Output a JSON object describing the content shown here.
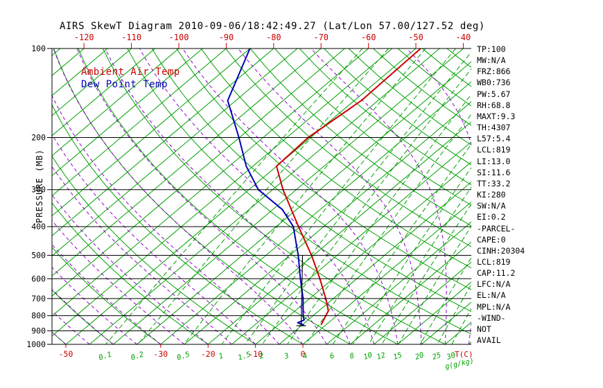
{
  "title": "AIRS SkewT Diagram 2010-09-06/18:42:49.27 (Lat/Lon 57.00/127.52 deg)",
  "legend": {
    "ambient_air_temp": "Ambient Air Temp",
    "dew_point_temp": "Dew Point Temp"
  },
  "pressure_axis_label": "PRESSURE (MB)",
  "temp_unit_label": "T(C)",
  "mixing_unit_label": "g(g/kg)",
  "stats": [
    "TP:100",
    "MW:N/A",
    "FRZ:866",
    "WB0:736",
    "PW:5.67",
    "RH:68.8",
    "MAXT:9.3",
    "TH:4307",
    "L57:5.4",
    "LCL:819",
    "LI:13.0",
    "SI:11.6",
    "TT:33.2",
    "KI:280",
    "SW:N/A",
    "EI:0.2",
    "-PARCEL-",
    "CAPE:0",
    "CINH:20304",
    "LCL:819",
    "CAP:11.2",
    "LFC:N/A",
    "EL:N/A",
    "MPL:N/A",
    "-WIND-",
    "NOT",
    "AVAIL"
  ],
  "colors": {
    "temp": "#cc0000",
    "dew": "#0000bb",
    "green": "#00a000",
    "moist": "#9400d3",
    "axis": "#000000"
  },
  "chart_data": {
    "type": "line",
    "title": "AIRS SkewT Diagram 2010-09-06/18:42:49.27 (Lat/Lon 57.00/127.52 deg)",
    "x_axis": {
      "unit": "T(C)",
      "top_ticks": [
        -120,
        -110,
        -100,
        -90,
        -80,
        -70,
        -60,
        -50,
        -40
      ],
      "bottom_ticks": [
        -50,
        -30,
        -20,
        -10,
        0
      ]
    },
    "y_axis": {
      "label": "PRESSURE (MB)",
      "scale": "log",
      "range": [
        100,
        1000
      ],
      "ticks": [
        100,
        200,
        300,
        400,
        500,
        600,
        700,
        800,
        900,
        1000
      ]
    },
    "grid": {
      "isotherm_step_c": 5,
      "dry_adiabat_step_c": 10,
      "moist_adiabat_step_c": 5,
      "mixing_ratio_gkg": [
        0.1,
        0.2,
        0.5,
        1,
        1.5,
        2,
        3,
        4,
        6,
        8,
        10,
        12,
        15,
        20,
        25,
        30
      ]
    },
    "series": [
      {
        "name": "Ambient Air Temp",
        "color": "#cc0000",
        "points": [
          [
            860,
            -1.0
          ],
          [
            770,
            -3.0
          ],
          [
            700,
            -6.6
          ],
          [
            600,
            -12.8
          ],
          [
            500,
            -20.4
          ],
          [
            400,
            -30.3
          ],
          [
            300,
            -42.8
          ],
          [
            250,
            -50.0
          ],
          [
            200,
            -50.5
          ],
          [
            150,
            -48.5
          ],
          [
            100,
            -49.0
          ]
        ]
      },
      {
        "name": "Dew Point Temp",
        "color": "#0000bb",
        "points": [
          [
            862,
            -4.5
          ],
          [
            845,
            -6.5
          ],
          [
            828,
            -5.8
          ],
          [
            800,
            -7.1
          ],
          [
            700,
            -11.4
          ],
          [
            600,
            -16.9
          ],
          [
            500,
            -23.2
          ],
          [
            400,
            -31.4
          ],
          [
            350,
            -38.0
          ],
          [
            300,
            -48.0
          ],
          [
            250,
            -56.4
          ],
          [
            200,
            -65.1
          ],
          [
            150,
            -76.7
          ],
          [
            100,
            -85.0
          ]
        ]
      },
      {
        "name": "Parcel",
        "color": "#000000",
        "points": [
          [
            500,
            -22.3
          ],
          [
            865,
            -5.0
          ]
        ]
      }
    ]
  }
}
